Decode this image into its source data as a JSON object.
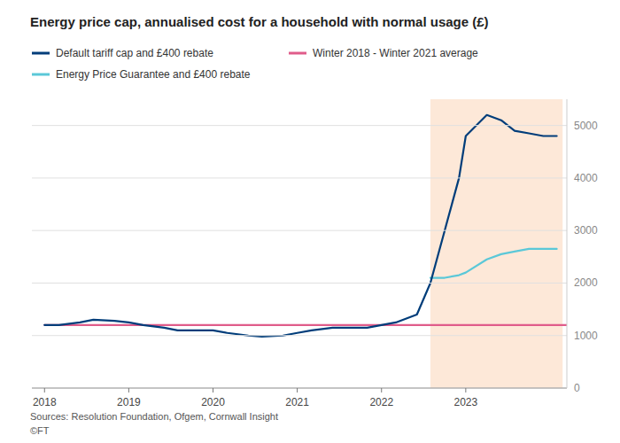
{
  "chart_data": {
    "type": "line",
    "title": "Energy price cap, annualised cost for a household with normal usage (£)",
    "annotations": [
      "Sources: Resolution Foundation, Ofgem, Cornwall Insight",
      "©FT"
    ],
    "series": [
      {
        "name": "Default tariff cap and £400 rebate",
        "color": "#003d7a",
        "line_style": "solid",
        "x": [
          2018.0,
          2018.17,
          2018.42,
          2018.58,
          2018.83,
          2019.0,
          2019.17,
          2019.42,
          2019.58,
          2019.83,
          2020.0,
          2020.17,
          2020.42,
          2020.58,
          2020.83,
          2021.0,
          2021.17,
          2021.42,
          2021.58,
          2021.83,
          2022.0,
          2022.17,
          2022.42,
          2022.58,
          2022.75,
          2022.92,
          2023.0,
          2023.25,
          2023.42,
          2023.58,
          2023.75,
          2023.92,
          2024.0,
          2024.08
        ],
        "values": [
          1200,
          1200,
          1250,
          1300,
          1280,
          1250,
          1200,
          1150,
          1100,
          1100,
          1100,
          1050,
          1000,
          980,
          1000,
          1050,
          1100,
          1150,
          1150,
          1150,
          1200,
          1250,
          1400,
          2000,
          3000,
          4000,
          4800,
          5200,
          5100,
          4900,
          4850,
          4800,
          4800,
          4800
        ]
      },
      {
        "name": "Winter 2018 - Winter 2021 average",
        "color": "#e05c8a",
        "line_style": "solid",
        "x": [
          2018.0,
          2024.2
        ],
        "values": [
          1200,
          1200
        ]
      },
      {
        "name": "Energy Price Guarantee and £400 rebate",
        "color": "#5bc8d8",
        "line_style": "solid",
        "x": [
          2022.58,
          2022.75,
          2022.92,
          2023.0,
          2023.25,
          2023.42,
          2023.58,
          2023.75,
          2023.92,
          2024.0,
          2024.08
        ],
        "values": [
          2100,
          2100,
          2150,
          2200,
          2450,
          2550,
          2600,
          2650,
          2650,
          2650,
          2650
        ]
      }
    ],
    "shaded_region": {
      "x": [
        2022.58,
        2024.15
      ],
      "color": "#fde8d8"
    },
    "xlim": [
      2017.85,
      2024.2
    ],
    "xticks": [
      2018,
      2019,
      2020,
      2021,
      2022,
      2023
    ],
    "ylim": [
      0,
      5500
    ],
    "yticks": [
      0,
      1000,
      2000,
      3000,
      4000,
      5000
    ],
    "grid": true,
    "legend": "top-left"
  }
}
